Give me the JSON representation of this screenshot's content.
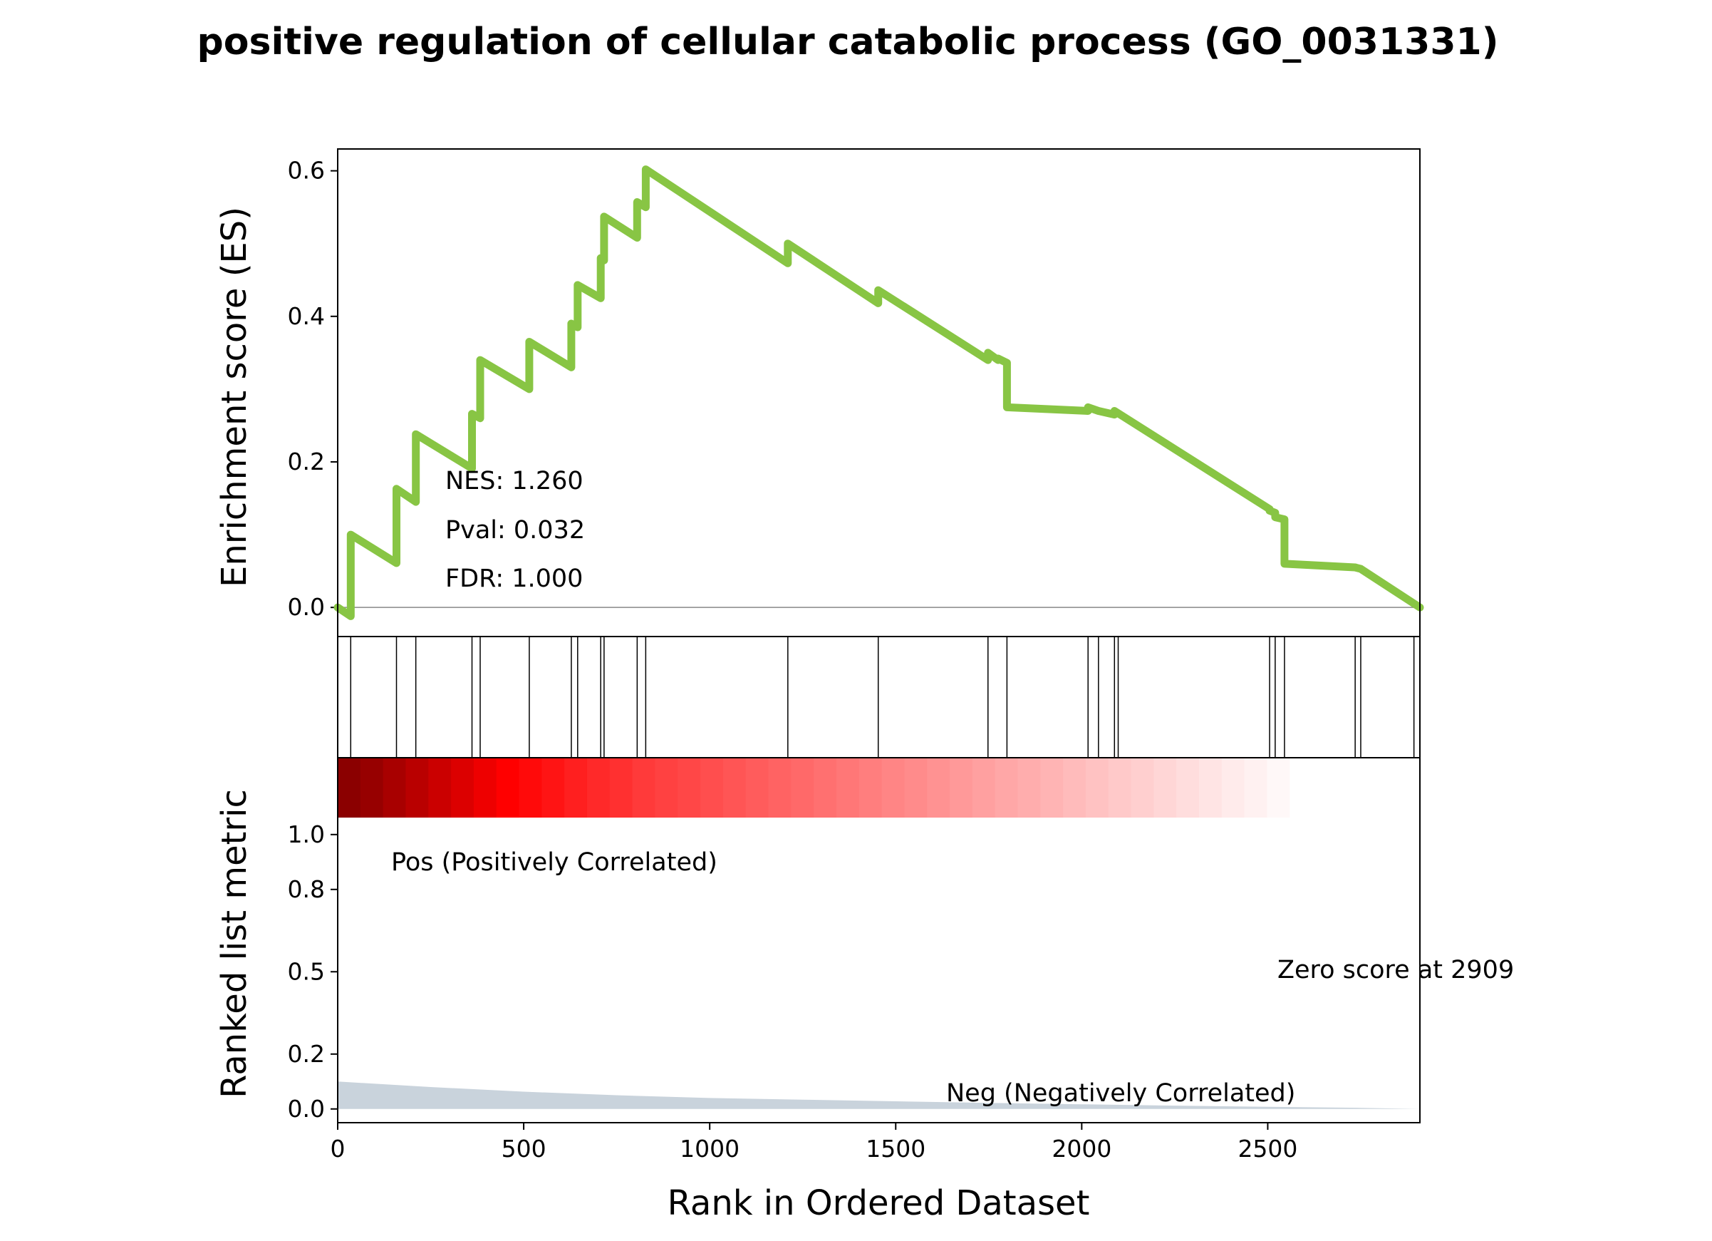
{
  "chart_data": {
    "type": "line",
    "title": "positive regulation of cellular catabolic process (GO_0031331)",
    "xlabel": "Rank in Ordered Dataset",
    "xlim": [
      0,
      2909
    ],
    "x_ticks": [
      "0",
      "500",
      "1000",
      "1500",
      "2000",
      "2500"
    ],
    "colors": {
      "es_line": "#88c544",
      "hit_line": "#000000",
      "metric_fill": "#c9d3dc",
      "pos_label": "#ff0000",
      "neg_label": "#0000ff"
    },
    "es_panel": {
      "ylabel": "Enrichment score (ES)",
      "ylim": [
        -0.04,
        0.63
      ],
      "y_ticks": [
        "0.0",
        "0.2",
        "0.4",
        "0.6"
      ],
      "stats": {
        "nes": "NES: 1.260",
        "pval": "Pval: 0.032",
        "fdr": "FDR: 1.000"
      },
      "series": [
        {
          "x": [
            0,
            35,
            35,
            158,
            158,
            210,
            210,
            361,
            361,
            383,
            383,
            515,
            515,
            628,
            628,
            645,
            645,
            707,
            707,
            716,
            716,
            805,
            805,
            828,
            828,
            1210,
            1210,
            1453,
            1453,
            1748,
            1748,
            1775,
            1775,
            1799,
            1799,
            2017,
            2017,
            2045,
            2045,
            2088,
            2088,
            2505,
            2505,
            2520,
            2520,
            2545,
            2545,
            2735,
            2735,
            2750,
            2750,
            2909
          ],
          "y": [
            0.0,
            -0.012,
            0.1,
            0.061,
            0.163,
            0.145,
            0.238,
            0.191,
            0.266,
            0.26,
            0.34,
            0.3,
            0.365,
            0.33,
            0.39,
            0.385,
            0.443,
            0.425,
            0.48,
            0.477,
            0.537,
            0.508,
            0.557,
            0.55,
            0.602,
            0.473,
            0.5,
            0.418,
            0.436,
            0.34,
            0.35,
            0.34,
            0.342,
            0.336,
            0.275,
            0.27,
            0.275,
            0.27,
            0.27,
            0.265,
            0.27,
            0.135,
            0.133,
            0.13,
            0.124,
            0.121,
            0.06,
            0.055,
            0.055,
            0.053,
            0.053,
            0.0
          ]
        }
      ]
    },
    "hits_panel": {
      "ranks": [
        35,
        158,
        210,
        361,
        383,
        515,
        628,
        645,
        707,
        716,
        805,
        828,
        1210,
        1453,
        1748,
        1799,
        2017,
        2045,
        2088,
        2098,
        2505,
        2520,
        2545,
        2735,
        2750,
        2893
      ]
    },
    "metric_panel": {
      "ylabel": "Ranked list metric",
      "ylim": [
        -0.05,
        1.28
      ],
      "y_ticks": [
        "0.0",
        "0.2",
        "0.5",
        "0.8",
        "1.0"
      ],
      "heatmap_levels": [
        0.95,
        0.93,
        0.9,
        0.87,
        0.84,
        0.81,
        0.78,
        0.75,
        0.72,
        0.69,
        0.66,
        0.63,
        0.61,
        0.58,
        0.56,
        0.54,
        0.52,
        0.5,
        0.48,
        0.46,
        0.44,
        0.42,
        0.4,
        0.38,
        0.36,
        0.34,
        0.32,
        0.3,
        0.28,
        0.26,
        0.24,
        0.22,
        0.2,
        0.18,
        0.16,
        0.14,
        0.12,
        0.1,
        0.08,
        0.06,
        0.04,
        0.02,
        0.0
      ],
      "heatmap_x_end": 2620,
      "metric_x": [
        0,
        250,
        500,
        750,
        1000,
        1250,
        1500,
        1750,
        2000,
        2250,
        2500,
        2750,
        2909
      ],
      "metric_y": [
        0.1,
        0.08,
        0.063,
        0.05,
        0.04,
        0.034,
        0.028,
        0.022,
        0.017,
        0.012,
        0.008,
        0.004,
        0.0
      ],
      "pos_label": "Pos (Positively Correlated)",
      "neg_label": "Neg (Negatively Correlated)",
      "zero_label": "Zero score at 2909"
    }
  }
}
